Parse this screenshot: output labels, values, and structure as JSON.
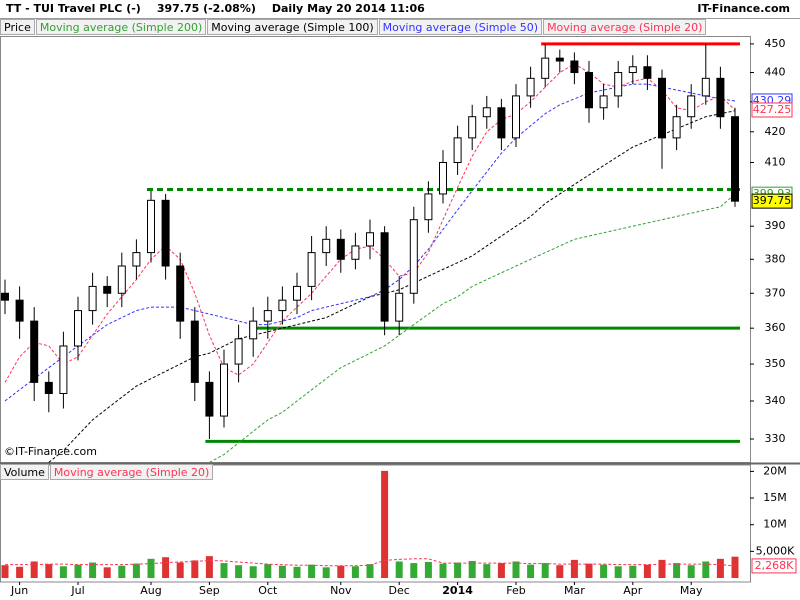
{
  "header": {
    "symbol": "TT - TUI Travel PLC (-)",
    "change": "397.75 (-2.08%)",
    "period": "Daily",
    "timestamp": "May 20 2014 11:06",
    "source": "IT-Finance.com"
  },
  "chart_data": [
    {
      "type": "candlestick",
      "legend_label": "Price",
      "watermark": "©IT-Finance.com",
      "up_color": "#ffffff",
      "down_color": "#000000",
      "last_label_color": "#ffff00",
      "log_scale": true,
      "ylim": [
        324.1,
        452.8
      ],
      "yticks": [
        330,
        340,
        350,
        360,
        370,
        380,
        390,
        410,
        420,
        430,
        440,
        450
      ],
      "open": [
        370,
        368,
        362,
        345,
        342,
        355,
        365,
        372,
        370,
        378,
        382,
        398,
        378,
        362,
        345,
        336,
        350,
        357,
        362,
        365,
        368,
        372,
        382,
        386,
        380,
        384,
        388,
        362,
        370,
        392,
        400,
        410,
        418,
        425,
        428,
        418,
        432,
        438,
        445,
        444,
        440,
        428,
        432,
        440,
        442,
        438,
        418,
        425,
        432,
        438,
        425
      ],
      "high": [
        374,
        372,
        366,
        348,
        359,
        369,
        376,
        375,
        382,
        386,
        401,
        400,
        382,
        366,
        348,
        354,
        361,
        366,
        369,
        372,
        376,
        387,
        390,
        389,
        388,
        392,
        390,
        375,
        396,
        404,
        414,
        422,
        429,
        432,
        431,
        436,
        442,
        450,
        448,
        447,
        444,
        436,
        444,
        446,
        446,
        441,
        429,
        436,
        450,
        442,
        428
      ],
      "low": [
        364,
        357,
        340,
        337,
        338,
        351,
        361,
        366,
        366,
        374,
        379,
        374,
        357,
        340,
        330,
        333,
        345,
        352,
        357,
        361,
        364,
        368,
        378,
        376,
        377,
        380,
        358,
        358,
        367,
        388,
        397,
        406,
        414,
        421,
        414,
        415,
        428,
        435,
        440,
        436,
        423,
        424,
        428,
        436,
        434,
        408,
        414,
        421,
        429,
        421,
        396
      ],
      "close": [
        368,
        362,
        345,
        342,
        355,
        365,
        372,
        370,
        378,
        382,
        398,
        378,
        362,
        345,
        336,
        350,
        357,
        362,
        365,
        368,
        372,
        382,
        386,
        380,
        384,
        388,
        362,
        370,
        392,
        400,
        410,
        418,
        425,
        428,
        418,
        432,
        438,
        445,
        444,
        440,
        428,
        432,
        440,
        442,
        438,
        418,
        425,
        432,
        438,
        425,
        397.75
      ],
      "series": [
        {
          "name": "Moving average (Simple 200)",
          "color": "#33a033",
          "values": [
            null,
            null,
            null,
            null,
            null,
            null,
            null,
            null,
            null,
            null,
            null,
            null,
            null,
            null,
            324,
            326,
            329,
            332,
            335,
            337,
            340,
            343,
            346,
            349,
            351,
            353,
            355,
            358,
            361,
            364,
            367,
            369,
            372,
            374,
            376,
            378,
            380,
            382,
            384,
            386,
            387,
            388,
            389,
            390,
            391,
            392,
            393,
            394,
            395,
            396,
            399.93
          ]
        },
        {
          "name": "Moving average (Simple 100)",
          "color": "#000000",
          "values": [
            null,
            null,
            null,
            324,
            327,
            331,
            335,
            338,
            341,
            344,
            346,
            348,
            350,
            352,
            353,
            355,
            357,
            358,
            359,
            360,
            361,
            362,
            363,
            365,
            367,
            369,
            370,
            371,
            373,
            375,
            377,
            379,
            381,
            384,
            387,
            390,
            393,
            397,
            400,
            403,
            406,
            409,
            412,
            415,
            417,
            419,
            421,
            423,
            425,
            426,
            427
          ]
        },
        {
          "name": "Moving average (Simple 50)",
          "color": "#3333ff",
          "values": [
            340,
            343,
            346,
            349,
            352,
            355,
            358,
            361,
            363,
            365,
            366,
            366,
            366,
            365,
            364,
            363,
            362,
            361,
            361,
            362,
            363,
            365,
            366,
            367,
            368,
            369,
            371,
            374,
            378,
            383,
            389,
            395,
            401,
            407,
            413,
            418,
            422,
            426,
            429,
            431,
            433,
            434,
            435,
            436,
            436,
            435,
            434,
            433,
            432,
            431,
            430.29
          ]
        },
        {
          "name": "Moving average (Simple 20)",
          "color": "#ff3355",
          "values": [
            345,
            352,
            356,
            355,
            350,
            352,
            358,
            364,
            369,
            374,
            380,
            384,
            380,
            370,
            358,
            349,
            347,
            350,
            356,
            362,
            366,
            370,
            375,
            380,
            383,
            384,
            380,
            375,
            376,
            382,
            392,
            402,
            412,
            420,
            424,
            426,
            430,
            435,
            440,
            443,
            440,
            436,
            435,
            437,
            438,
            434,
            428,
            427,
            430,
            432,
            427.25
          ]
        }
      ],
      "levels": [
        {
          "value": 450,
          "from": 37,
          "to": 50,
          "color": "#ff0000",
          "dashed": false
        },
        {
          "value": 401.4,
          "from": 10,
          "to": 50,
          "color": "#008800",
          "dashed": true
        },
        {
          "value": 360,
          "from": 17,
          "to": 50,
          "color": "#008800",
          "dashed": false
        },
        {
          "value": 329.4,
          "from": 14,
          "to": 50,
          "color": "#008800",
          "dashed": false
        }
      ]
    },
    {
      "type": "bar",
      "up_color": "#33aa33",
      "down_color": "#dd3333",
      "categories": [
        null,
        "Jun",
        null,
        null,
        null,
        "Jul",
        null,
        null,
        null,
        null,
        "Aug",
        null,
        null,
        null,
        "Sep",
        null,
        null,
        null,
        "Oct",
        null,
        null,
        null,
        null,
        "Nov",
        null,
        null,
        null,
        "Dec",
        null,
        null,
        null,
        "2014",
        null,
        null,
        null,
        "Feb",
        null,
        null,
        null,
        "Mar",
        null,
        null,
        null,
        "Apr",
        null,
        null,
        null,
        "May",
        null,
        null,
        null
      ],
      "ylim": [
        0,
        21200000
      ],
      "yticks": [
        {
          "value": 5000000,
          "label": "5,000K"
        },
        {
          "value": 10000000,
          "label": "10M"
        },
        {
          "value": 15000000,
          "label": "15M"
        },
        {
          "value": 20000000,
          "label": "20M"
        }
      ],
      "series": [
        {
          "name": "Volume",
          "color": "#33aa33",
          "values": [
            2400000,
            2100000,
            3100000,
            2600000,
            2200000,
            2500000,
            2900000,
            2000000,
            2300000,
            2700000,
            3600000,
            3900000,
            2900000,
            3300000,
            4100000,
            2800000,
            2400000,
            2200000,
            2600000,
            2300000,
            2100000,
            2500000,
            2000000,
            2300000,
            2200000,
            2600000,
            20100000,
            3100000,
            2800000,
            3000000,
            2700000,
            2900000,
            3200000,
            2600000,
            2800000,
            3100000,
            2500000,
            2800000,
            2400000,
            3400000,
            2700000,
            2500000,
            2200000,
            2300000,
            2500000,
            3400000,
            2800000,
            2400000,
            3100000,
            3600000,
            4000000
          ]
        },
        {
          "name": "Moving average (Simple 20)",
          "color": "#ff3355",
          "values": [
            2500000,
            2500000,
            2500000,
            2600000,
            2600000,
            2500000,
            2500000,
            2500000,
            2500000,
            2600000,
            2700000,
            2900000,
            3000000,
            3100000,
            3300000,
            3200000,
            3000000,
            2800000,
            2600000,
            2500000,
            2400000,
            2400000,
            2300000,
            2300000,
            2300000,
            2400000,
            3300000,
            3500000,
            3600000,
            3600000,
            2800000,
            2800000,
            2800000,
            2800000,
            2800000,
            2800000,
            2700000,
            2700000,
            2600000,
            2600000,
            2600000,
            2600000,
            2500000,
            2500000,
            2500000,
            2600000,
            2600000,
            2600000,
            2600000,
            2500000,
            2268000
          ],
          "value_labels": [
            null,
            null,
            null,
            null,
            null,
            null,
            null,
            null,
            null,
            null,
            null,
            null,
            null,
            null,
            null,
            null,
            null,
            null,
            null,
            null,
            null,
            null,
            null,
            null,
            null,
            null,
            null,
            null,
            null,
            null,
            null,
            null,
            null,
            null,
            null,
            null,
            null,
            null,
            null,
            null,
            null,
            null,
            null,
            null,
            null,
            null,
            null,
            null,
            null,
            null,
            "2,268K"
          ]
        }
      ]
    }
  ]
}
